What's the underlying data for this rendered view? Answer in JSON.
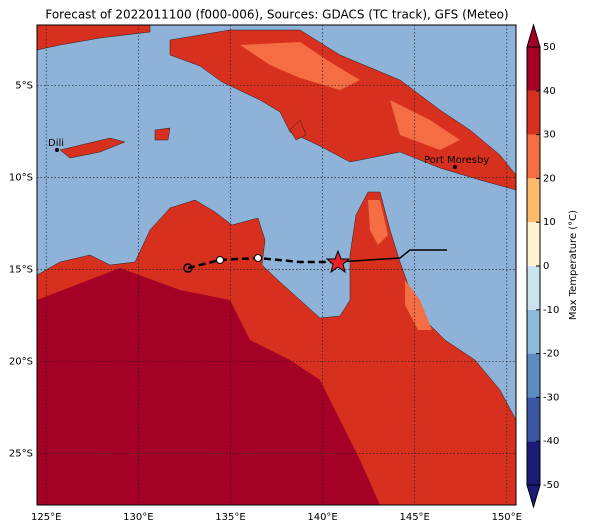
{
  "title": "Forecast of 2022011100 (f000-006), Sources: GDACS (TC track), GFS (Meteo)",
  "map": {
    "lonlim": [
      124.5,
      150.5
    ],
    "latlim": [
      -27.8,
      -1.7
    ],
    "lon_ticks": [
      {
        "value": 125,
        "label": "125°E"
      },
      {
        "value": 130,
        "label": "130°E"
      },
      {
        "value": 135,
        "label": "135°E"
      },
      {
        "value": 140,
        "label": "140°E"
      },
      {
        "value": 145,
        "label": "145°E"
      },
      {
        "value": 150,
        "label": "150°E"
      }
    ],
    "lat_ticks": [
      {
        "value": -5,
        "label": "5°S"
      },
      {
        "value": -10,
        "label": "10°S"
      },
      {
        "value": -15,
        "label": "15°S"
      },
      {
        "value": -20,
        "label": "20°S"
      },
      {
        "value": -25,
        "label": "25°S"
      }
    ],
    "places": [
      {
        "name": "Dili"
      },
      {
        "name": "Port Moresby"
      }
    ]
  },
  "colorbar": {
    "label": "Max Temperature (°C)",
    "lim": [
      -50,
      50
    ],
    "ticks": [
      -50,
      -40,
      -30,
      -20,
      -10,
      0,
      10,
      20,
      30,
      40,
      50
    ],
    "colors": [
      "#1c1c78",
      "#3b56a2",
      "#5b8cc2",
      "#8cbad9",
      "#c9e3ef",
      "#fff3cf",
      "#fdbb6c",
      "#f46d43",
      "#d7301f",
      "#a50026"
    ]
  }
}
